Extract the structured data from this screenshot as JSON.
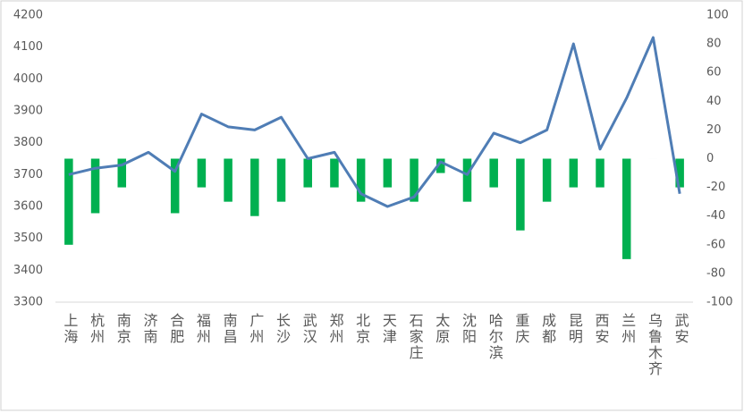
{
  "chart_data": {
    "type": "bar-line",
    "categories": [
      "上海",
      "杭州",
      "南京",
      "济南",
      "合肥",
      "福州",
      "南昌",
      "广州",
      "长沙",
      "武汉",
      "郑州",
      "北京",
      "天津",
      "石家庄",
      "太原",
      "沈阳",
      "哈尔滨",
      "重庆",
      "成都",
      "昆明",
      "西安",
      "兰州",
      "乌鲁木齐",
      "武安"
    ],
    "series": [
      {
        "type": "line",
        "color": "#4f7db5",
        "values": [
          3700,
          3720,
          3730,
          3770,
          3710,
          3890,
          3850,
          3840,
          3880,
          3750,
          3770,
          3640,
          3600,
          3630,
          3740,
          3700,
          3830,
          3800,
          3840,
          4110,
          3780,
          3940,
          4130,
          3640
        ]
      },
      {
        "type": "bar",
        "axis": "y2",
        "color": "#00b050",
        "values": [
          -60,
          -38,
          -20,
          0,
          -38,
          -20,
          -30,
          -40,
          -30,
          -20,
          -20,
          -30,
          -20,
          -30,
          -10,
          -30,
          -20,
          -50,
          -30,
          -20,
          -20,
          -70,
          0,
          -20
        ]
      }
    ],
    "ylim": [
      3300,
      4200
    ],
    "yticks": [
      3300,
      3400,
      3500,
      3600,
      3700,
      3800,
      3900,
      4000,
      4100,
      4200
    ],
    "y2lim": [
      -100,
      100
    ],
    "y2ticks": [
      -100,
      -80,
      -60,
      -40,
      -20,
      0,
      20,
      40,
      60,
      80,
      100
    ]
  }
}
